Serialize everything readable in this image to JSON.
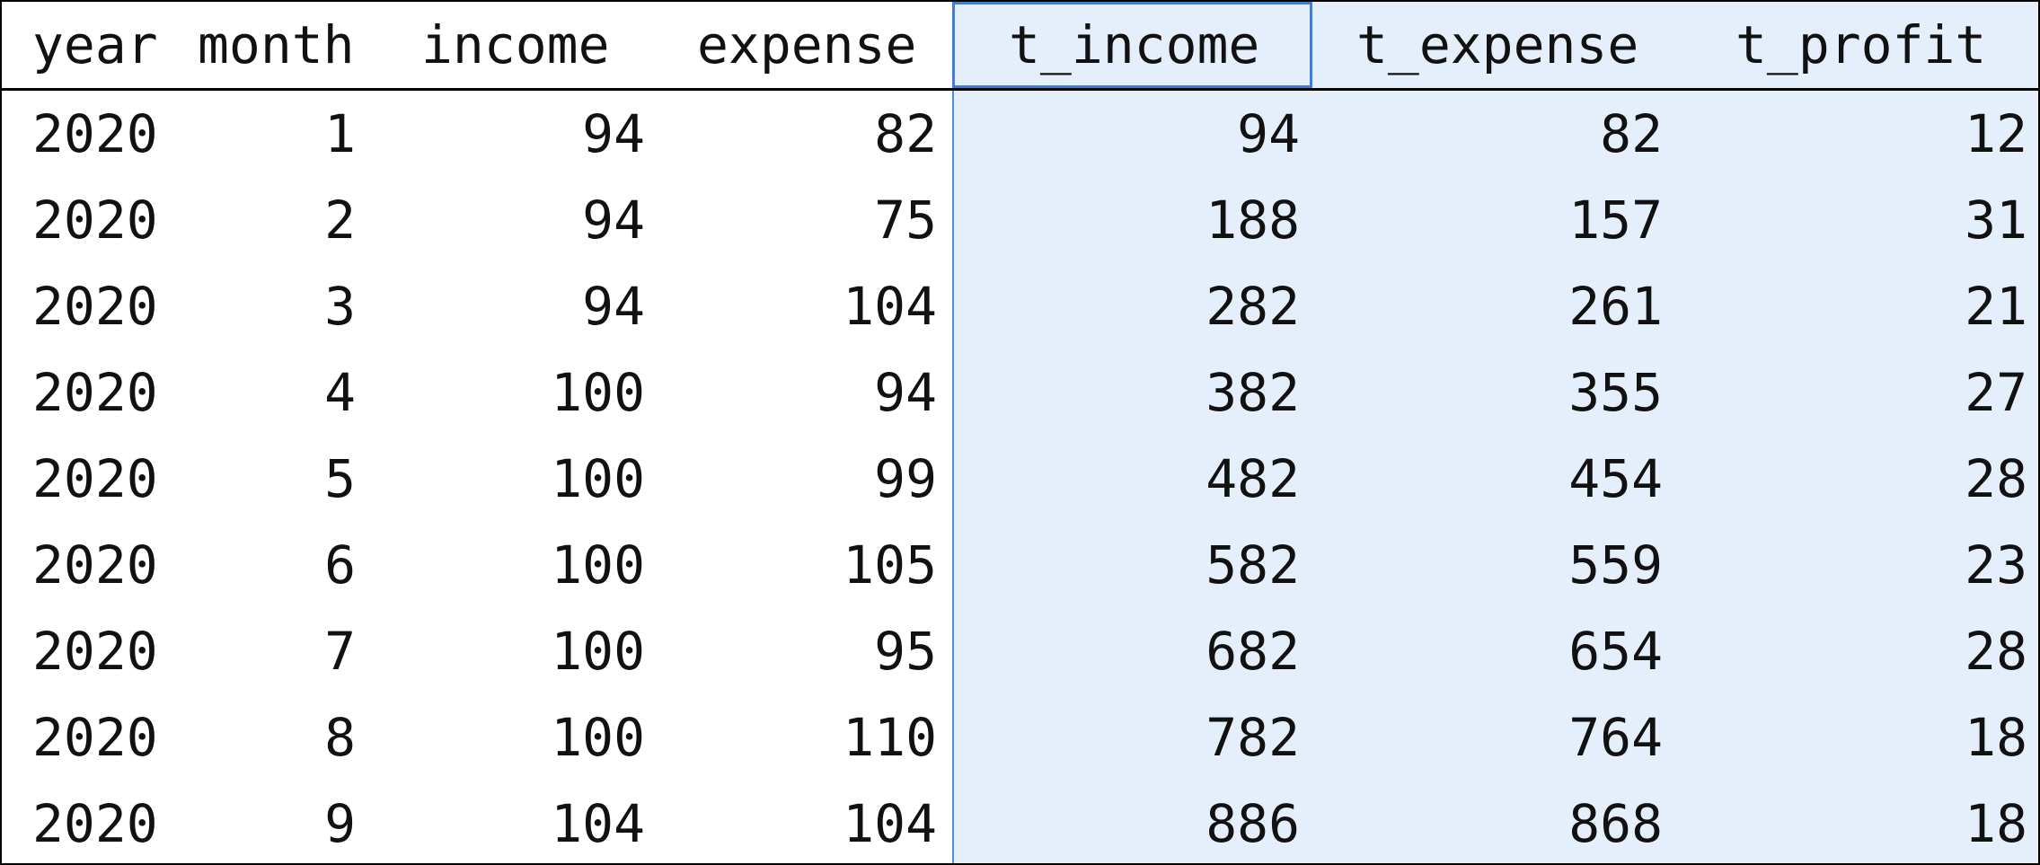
{
  "table": {
    "headers": [
      "year",
      "month",
      "income",
      "expense",
      "t_income",
      "t_expense",
      "t_profit"
    ],
    "rows": [
      [
        "2020",
        "1",
        "94",
        "82",
        "94",
        "82",
        "12"
      ],
      [
        "2020",
        "2",
        "94",
        "75",
        "188",
        "157",
        "31"
      ],
      [
        "2020",
        "3",
        "94",
        "104",
        "282",
        "261",
        "21"
      ],
      [
        "2020",
        "4",
        "100",
        "94",
        "382",
        "355",
        "27"
      ],
      [
        "2020",
        "5",
        "100",
        "99",
        "482",
        "454",
        "28"
      ],
      [
        "2020",
        "6",
        "100",
        "105",
        "582",
        "559",
        "23"
      ],
      [
        "2020",
        "7",
        "100",
        "95",
        "682",
        "654",
        "28"
      ],
      [
        "2020",
        "8",
        "100",
        "110",
        "782",
        "764",
        "18"
      ],
      [
        "2020",
        "9",
        "104",
        "104",
        "886",
        "868",
        "18"
      ]
    ]
  },
  "style": {
    "selection_color": "#e5effc",
    "focus_border_color": "#3f7fd3",
    "text_color": "#111111",
    "border_color": "#000000"
  }
}
